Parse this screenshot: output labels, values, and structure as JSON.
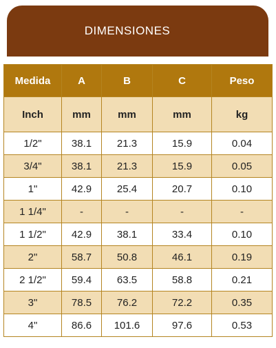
{
  "header": {
    "title": "DIMENSIONES"
  },
  "table": {
    "columns": [
      "Medida",
      "A",
      "B",
      "C",
      "Peso"
    ],
    "units": [
      "Inch",
      "mm",
      "mm",
      "mm",
      "kg"
    ],
    "rows": [
      [
        "1/2\"",
        "38.1",
        "21.3",
        "15.9",
        "0.04"
      ],
      [
        "3/4\"",
        "38.1",
        "21.3",
        "15.9",
        "0.05"
      ],
      [
        "1\"",
        "42.9",
        "25.4",
        "20.7",
        "0.10"
      ],
      [
        "1 1/4\"",
        "-",
        "-",
        "-",
        "-"
      ],
      [
        "1 1/2\"",
        "42.9",
        "38.1",
        "33.4",
        "0.10"
      ],
      [
        "2\"",
        "58.7",
        "50.8",
        "46.1",
        "0.19"
      ],
      [
        "2 1/2\"",
        "59.4",
        "63.5",
        "58.8",
        "0.21"
      ],
      [
        "3\"",
        "78.5",
        "76.2",
        "72.2",
        "0.35"
      ],
      [
        "4\"",
        "86.6",
        "101.6",
        "97.6",
        "0.53"
      ]
    ]
  }
}
